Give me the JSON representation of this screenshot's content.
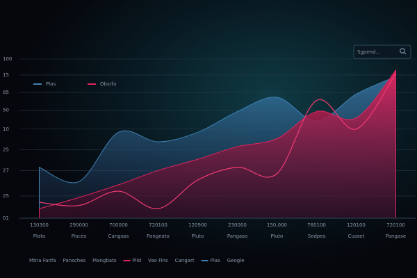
{
  "chart_data": {
    "type": "area",
    "search_placeholder": "Sgpend...",
    "categories": [
      "130300",
      "290000",
      "700000",
      "720100",
      "120900",
      "230000",
      "150,000",
      "760100",
      "120100",
      "720100"
    ],
    "category_names": [
      "Plato",
      "Pisces",
      "Cangass",
      "Pangeato",
      "Pluto",
      "Pangaso",
      "Pluto",
      "Sedpes",
      "Cusset",
      "Pangase"
    ],
    "series": [
      {
        "name": "Plas",
        "color": "#3e82b4",
        "style": "area",
        "values": [
          32,
          23,
          54,
          48,
          54,
          67,
          76,
          61,
          78,
          89
        ]
      },
      {
        "name": "Obsrfa",
        "color": "#e0245e",
        "style": "area",
        "values": [
          6,
          13,
          21,
          30,
          37,
          45,
          50,
          67,
          63,
          93
        ]
      },
      {
        "color": "#f03a72",
        "style": "line",
        "values": [
          10,
          8,
          17,
          6,
          24,
          32,
          28,
          74,
          56,
          91
        ]
      }
    ],
    "ylim": [
      0,
      100
    ],
    "yticks": [
      {
        "value": 0,
        "label": "01"
      },
      {
        "value": 14,
        "label": "25"
      },
      {
        "value": 30,
        "label": "27"
      },
      {
        "value": 43,
        "label": "25"
      },
      {
        "value": 56,
        "label": "10"
      },
      {
        "value": 68,
        "label": "50"
      },
      {
        "value": 79,
        "label": "85"
      },
      {
        "value": 90,
        "label": "15"
      },
      100
    ],
    "grid": true,
    "bottom_legend": [
      {
        "label": "Mtna Fanfa"
      },
      {
        "label": "Pansches"
      },
      {
        "label": "Mangbats"
      },
      {
        "label": "Plid",
        "color": "#e0245e"
      },
      {
        "label": "Vao Fins"
      },
      {
        "label": "Cangart"
      },
      {
        "label": "Plas",
        "color": "#3e82b4"
      },
      {
        "label": "Geogle"
      }
    ]
  }
}
